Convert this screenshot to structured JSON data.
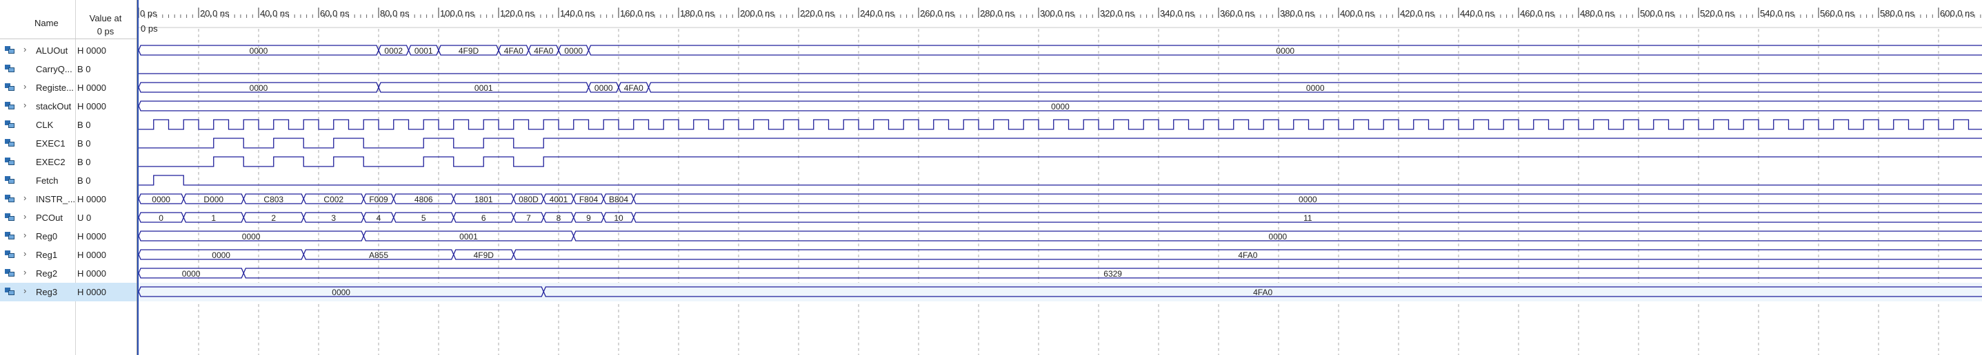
{
  "panel": {
    "name_header": "Name",
    "value_header_line1": "Value at",
    "value_header_line2": "0 ps"
  },
  "timeline": {
    "cursor_label": "0 ps",
    "ticks": [
      "0 ps",
      "20.0 ns",
      "40.0 ns",
      "60.0 ns",
      "80.0 ns",
      "100.0 ns",
      "120.0 ns",
      "140.0 ns",
      "160.0 ns",
      "180.0 ns",
      "200.0 ns",
      "220.0 ns",
      "240.0 ns",
      "260.0 ns",
      "280.0 ns",
      "300.0 ns",
      "320.0 ns",
      "340.0 ns",
      "360.0 ns",
      "380.0 ns",
      "400.0 ns",
      "420.0 ns",
      "440.0 ns",
      "460.0 ns",
      "480.0 ns",
      "500.0 ns",
      "520.0 ns",
      "540.0 ns",
      "560.0 ns",
      "580.0 ns",
      "600.0 ns"
    ],
    "clock_period_ns": 10
  },
  "colors": {
    "wave": "#1f1f9a",
    "grid": "#a8a8a8",
    "cursor": "#2a4fb5",
    "selected_row": "#cfe6f8"
  },
  "signals": [
    {
      "name": "ALUOut",
      "value": "H 0000",
      "kind": "bus",
      "expandable": true,
      "segments": [
        {
          "start": 0,
          "end": 80,
          "label": "0000"
        },
        {
          "start": 80,
          "end": 90,
          "label": "0002"
        },
        {
          "start": 90,
          "end": 100,
          "label": "0001"
        },
        {
          "start": 100,
          "end": 120,
          "label": "4F9D"
        },
        {
          "start": 120,
          "end": 130,
          "label": "4FA0"
        },
        {
          "start": 130,
          "end": 140,
          "label": "4FA0"
        },
        {
          "start": 140,
          "end": 150,
          "label": "0000"
        },
        {
          "start": 150,
          "end": 620,
          "label": "0000"
        }
      ]
    },
    {
      "name": "CarryQ...",
      "value": "B 0",
      "kind": "bit",
      "expandable": false,
      "edges": []
    },
    {
      "name": "Registe...",
      "value": "H 0000",
      "kind": "bus",
      "expandable": true,
      "segments": [
        {
          "start": 0,
          "end": 80,
          "label": "0000"
        },
        {
          "start": 80,
          "end": 150,
          "label": "0001"
        },
        {
          "start": 150,
          "end": 160,
          "label": "0000"
        },
        {
          "start": 160,
          "end": 170,
          "label": "4FA0"
        },
        {
          "start": 170,
          "end": 620,
          "label": "0000"
        }
      ]
    },
    {
      "name": "stackOut",
      "value": "H 0000",
      "kind": "bus",
      "expandable": true,
      "segments": [
        {
          "start": 0,
          "end": 620,
          "label": "0000"
        }
      ]
    },
    {
      "name": "CLK",
      "value": "B 0",
      "kind": "clock",
      "expandable": false
    },
    {
      "name": "EXEC1",
      "value": "B 0",
      "kind": "bit",
      "expandable": false,
      "edges": [
        25,
        35,
        45,
        55,
        65,
        75,
        95,
        105,
        115,
        125,
        135
      ]
    },
    {
      "name": "EXEC2",
      "value": "B 0",
      "kind": "bit",
      "expandable": false,
      "edges": [
        25,
        35,
        45,
        55,
        65,
        75,
        95,
        105,
        115,
        125,
        135
      ]
    },
    {
      "name": "Fetch",
      "value": "B 0",
      "kind": "bit",
      "expandable": false,
      "edges": [
        5,
        15
      ]
    },
    {
      "name": "INSTR_...",
      "value": "H 0000",
      "kind": "bus",
      "expandable": true,
      "segments": [
        {
          "start": 0,
          "end": 15,
          "label": "0000"
        },
        {
          "start": 15,
          "end": 35,
          "label": "D000"
        },
        {
          "start": 35,
          "end": 55,
          "label": "C803"
        },
        {
          "start": 55,
          "end": 75,
          "label": "C002"
        },
        {
          "start": 75,
          "end": 85,
          "label": "F009"
        },
        {
          "start": 85,
          "end": 105,
          "label": "4806"
        },
        {
          "start": 105,
          "end": 125,
          "label": "1801"
        },
        {
          "start": 125,
          "end": 135,
          "label": "080D"
        },
        {
          "start": 135,
          "end": 145,
          "label": "4001"
        },
        {
          "start": 145,
          "end": 155,
          "label": "F804"
        },
        {
          "start": 155,
          "end": 165,
          "label": "B804"
        },
        {
          "start": 165,
          "end": 620,
          "label": "0000"
        }
      ]
    },
    {
      "name": "PCOut",
      "value": "U 0",
      "kind": "bus",
      "expandable": true,
      "segments": [
        {
          "start": 0,
          "end": 15,
          "label": "0"
        },
        {
          "start": 15,
          "end": 35,
          "label": "1"
        },
        {
          "start": 35,
          "end": 55,
          "label": "2"
        },
        {
          "start": 55,
          "end": 75,
          "label": "3"
        },
        {
          "start": 75,
          "end": 85,
          "label": "4"
        },
        {
          "start": 85,
          "end": 105,
          "label": "5"
        },
        {
          "start": 105,
          "end": 125,
          "label": "6"
        },
        {
          "start": 125,
          "end": 135,
          "label": "7"
        },
        {
          "start": 135,
          "end": 145,
          "label": "8"
        },
        {
          "start": 145,
          "end": 155,
          "label": "9"
        },
        {
          "start": 155,
          "end": 165,
          "label": "10"
        },
        {
          "start": 165,
          "end": 620,
          "label": "11"
        }
      ]
    },
    {
      "name": "Reg0",
      "value": "H 0000",
      "kind": "bus",
      "expandable": true,
      "segments": [
        {
          "start": 0,
          "end": 75,
          "label": "0000"
        },
        {
          "start": 75,
          "end": 145,
          "label": "0001"
        },
        {
          "start": 145,
          "end": 620,
          "label": "0000"
        }
      ]
    },
    {
      "name": "Reg1",
      "value": "H 0000",
      "kind": "bus",
      "expandable": true,
      "segments": [
        {
          "start": 0,
          "end": 55,
          "label": "0000"
        },
        {
          "start": 55,
          "end": 105,
          "label": "A855"
        },
        {
          "start": 105,
          "end": 125,
          "label": "4F9D"
        },
        {
          "start": 125,
          "end": 620,
          "label": "4FA0"
        }
      ]
    },
    {
      "name": "Reg2",
      "value": "H 0000",
      "kind": "bus",
      "expandable": true,
      "segments": [
        {
          "start": 0,
          "end": 35,
          "label": "0000"
        },
        {
          "start": 35,
          "end": 620,
          "label": "6329"
        }
      ]
    },
    {
      "name": "Reg3",
      "value": "H 0000",
      "kind": "bus",
      "expandable": true,
      "selected": true,
      "segments": [
        {
          "start": 0,
          "end": 135,
          "label": "0000"
        },
        {
          "start": 135,
          "end": 620,
          "label": "4FA0"
        }
      ]
    }
  ]
}
